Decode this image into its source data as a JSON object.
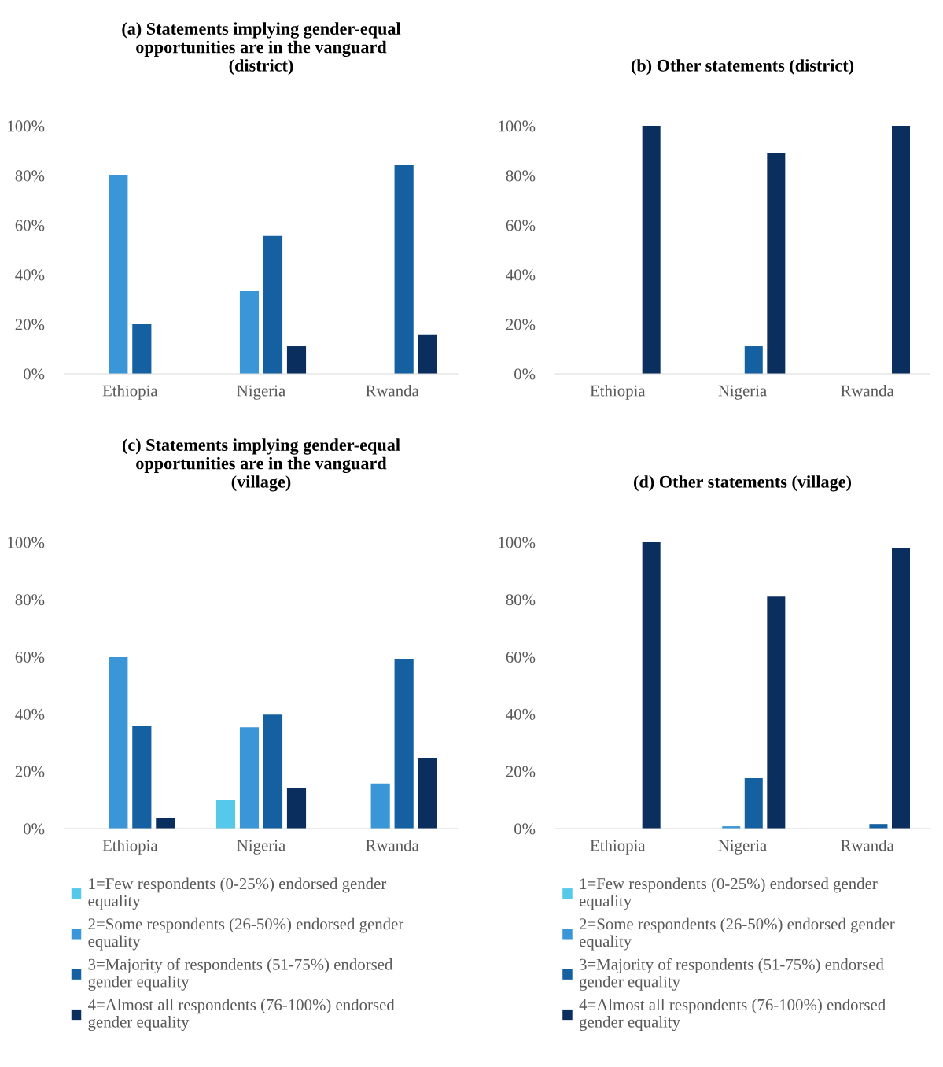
{
  "chart_data": [
    {
      "type": "bar",
      "title": "(a) Statements implying gender-equal\nopportunities are in the vanguard\n(district)",
      "categories": [
        "Ethiopia",
        "Nigeria",
        "Rwanda"
      ],
      "series": [
        {
          "color": "#56c8ea",
          "values": [
            0,
            0,
            0
          ]
        },
        {
          "color": "#3a96d6",
          "values": [
            80,
            33.3,
            0
          ]
        },
        {
          "color": "#1560a0",
          "values": [
            20,
            55.6,
            84.1
          ]
        },
        {
          "color": "#0a2f5e",
          "values": [
            0,
            11.1,
            15.6
          ]
        }
      ],
      "ylim": [
        0,
        100
      ],
      "yticks": [
        {
          "value": 0,
          "label": "0%"
        },
        {
          "value": 20,
          "label": "20%"
        },
        {
          "value": 40,
          "label": "40%"
        },
        {
          "value": 60,
          "label": "60%"
        },
        {
          "value": 80,
          "label": "80%"
        },
        {
          "value": 100,
          "label": "100%"
        }
      ],
      "grid": false,
      "legend": false
    },
    {
      "type": "bar",
      "title": "(b) Other statements (district)",
      "categories": [
        "Ethiopia",
        "Nigeria",
        "Rwanda"
      ],
      "series": [
        {
          "color": "#56c8ea",
          "values": [
            0,
            0,
            0
          ]
        },
        {
          "color": "#3a96d6",
          "values": [
            0,
            0,
            0
          ]
        },
        {
          "color": "#1560a0",
          "values": [
            0,
            11.1,
            0
          ]
        },
        {
          "color": "#0a2f5e",
          "values": [
            100,
            88.9,
            100
          ]
        }
      ],
      "ylim": [
        0,
        100
      ],
      "yticks": [
        {
          "value": 0,
          "label": "0%"
        },
        {
          "value": 20,
          "label": "20%"
        },
        {
          "value": 40,
          "label": "40%"
        },
        {
          "value": 60,
          "label": "60%"
        },
        {
          "value": 80,
          "label": "80%"
        },
        {
          "value": 100,
          "label": "100%"
        }
      ],
      "grid": false,
      "legend": false
    },
    {
      "type": "bar",
      "title": "(c) Statements implying gender-equal\nopportunities are in the vanguard\n(village)",
      "categories": [
        "Ethiopia",
        "Nigeria",
        "Rwanda"
      ],
      "series": [
        {
          "name": "1=Few respondents (0-25%) endorsed gender\nequality",
          "color": "#56c8ea",
          "values": [
            0,
            9.9,
            0
          ]
        },
        {
          "name": "2=Some respondents (26-50%) endorsed gender\nequality",
          "color": "#3a96d6",
          "values": [
            59.9,
            35.4,
            15.7
          ]
        },
        {
          "name": "3=Majority of respondents (51-75%) endorsed\ngender equality",
          "color": "#1560a0",
          "values": [
            35.7,
            39.8,
            59.1
          ]
        },
        {
          "name": "4=Almost all respondents (76-100%) endorsed\ngender equality",
          "color": "#0a2f5e",
          "values": [
            3.8,
            14.3,
            24.7
          ]
        }
      ],
      "ylim": [
        0,
        100
      ],
      "yticks": [
        {
          "value": 0,
          "label": "0%"
        },
        {
          "value": 20,
          "label": "20%"
        },
        {
          "value": 40,
          "label": "40%"
        },
        {
          "value": 60,
          "label": "60%"
        },
        {
          "value": 80,
          "label": "80%"
        },
        {
          "value": 100,
          "label": "100%"
        }
      ],
      "grid": false,
      "legend": "bottom"
    },
    {
      "type": "bar",
      "title": "(d) Other statements (village)",
      "categories": [
        "Ethiopia",
        "Nigeria",
        "Rwanda"
      ],
      "series": [
        {
          "name": "1=Few respondents (0-25%) endorsed gender\nequality",
          "color": "#56c8ea",
          "values": [
            0,
            0,
            0
          ]
        },
        {
          "name": "2=Some respondents (26-50%) endorsed gender\nequality",
          "color": "#3a96d6",
          "values": [
            0,
            0.8,
            0
          ]
        },
        {
          "name": "3=Majority of respondents (51-75%) endorsed\ngender equality",
          "color": "#1560a0",
          "values": [
            0,
            17.6,
            1.6
          ]
        },
        {
          "name": "4=Almost all respondents (76-100%) endorsed\ngender equality",
          "color": "#0a2f5e",
          "values": [
            100,
            81,
            98.1
          ]
        }
      ],
      "ylim": [
        0,
        100
      ],
      "yticks": [
        {
          "value": 0,
          "label": "0%"
        },
        {
          "value": 20,
          "label": "20%"
        },
        {
          "value": 40,
          "label": "40%"
        },
        {
          "value": 60,
          "label": "60%"
        },
        {
          "value": 80,
          "label": "80%"
        },
        {
          "value": 100,
          "label": "100%"
        }
      ],
      "grid": false,
      "legend": "bottom"
    }
  ]
}
